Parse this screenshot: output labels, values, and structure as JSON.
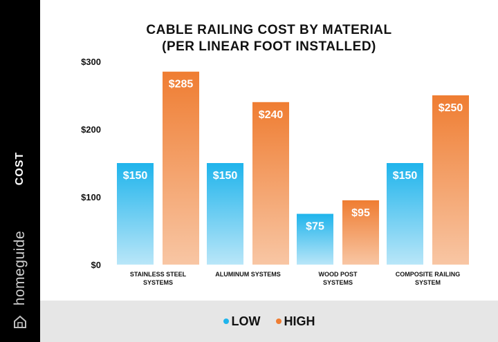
{
  "sidebar": {
    "axis_label": "COST",
    "brand": "homeguide",
    "brand_icon": "house-icon"
  },
  "chart_data": {
    "type": "bar",
    "title": "CABLE RAILING COST BY MATERIAL",
    "subtitle": "(PER LINEAR FOOT INSTALLED)",
    "ylabel": "COST",
    "xlabel": "",
    "categories": [
      [
        "STAINLESS STEEL",
        "SYSTEMS"
      ],
      [
        "ALUMINUM SYSTEMS"
      ],
      [
        "WOOD POST",
        "SYSTEMS"
      ],
      [
        "COMPOSITE RAILING",
        "SYSTEM"
      ]
    ],
    "series": [
      {
        "name": "LOW",
        "values": [
          150,
          150,
          75,
          150
        ],
        "color": "#1fb4ec",
        "color_light": "#b9e6f8"
      },
      {
        "name": "HIGH",
        "values": [
          285,
          240,
          95,
          250
        ],
        "color": "#ef7d32",
        "color_light": "#f8c6a4"
      }
    ],
    "data_labels": [
      [
        "$150",
        "$150",
        "$75",
        "$150"
      ],
      [
        "$285",
        "$240",
        "$95",
        "$250"
      ]
    ],
    "yticks": [
      {
        "value": 0,
        "label": "$0"
      },
      {
        "value": 100,
        "label": "$100"
      },
      {
        "value": 200,
        "label": "$200"
      },
      {
        "value": 300,
        "label": "$300"
      }
    ],
    "ylim": [
      0,
      300
    ],
    "grid": false,
    "legend_position": "bottom"
  },
  "legend": {
    "items": [
      "LOW",
      "HIGH"
    ]
  }
}
